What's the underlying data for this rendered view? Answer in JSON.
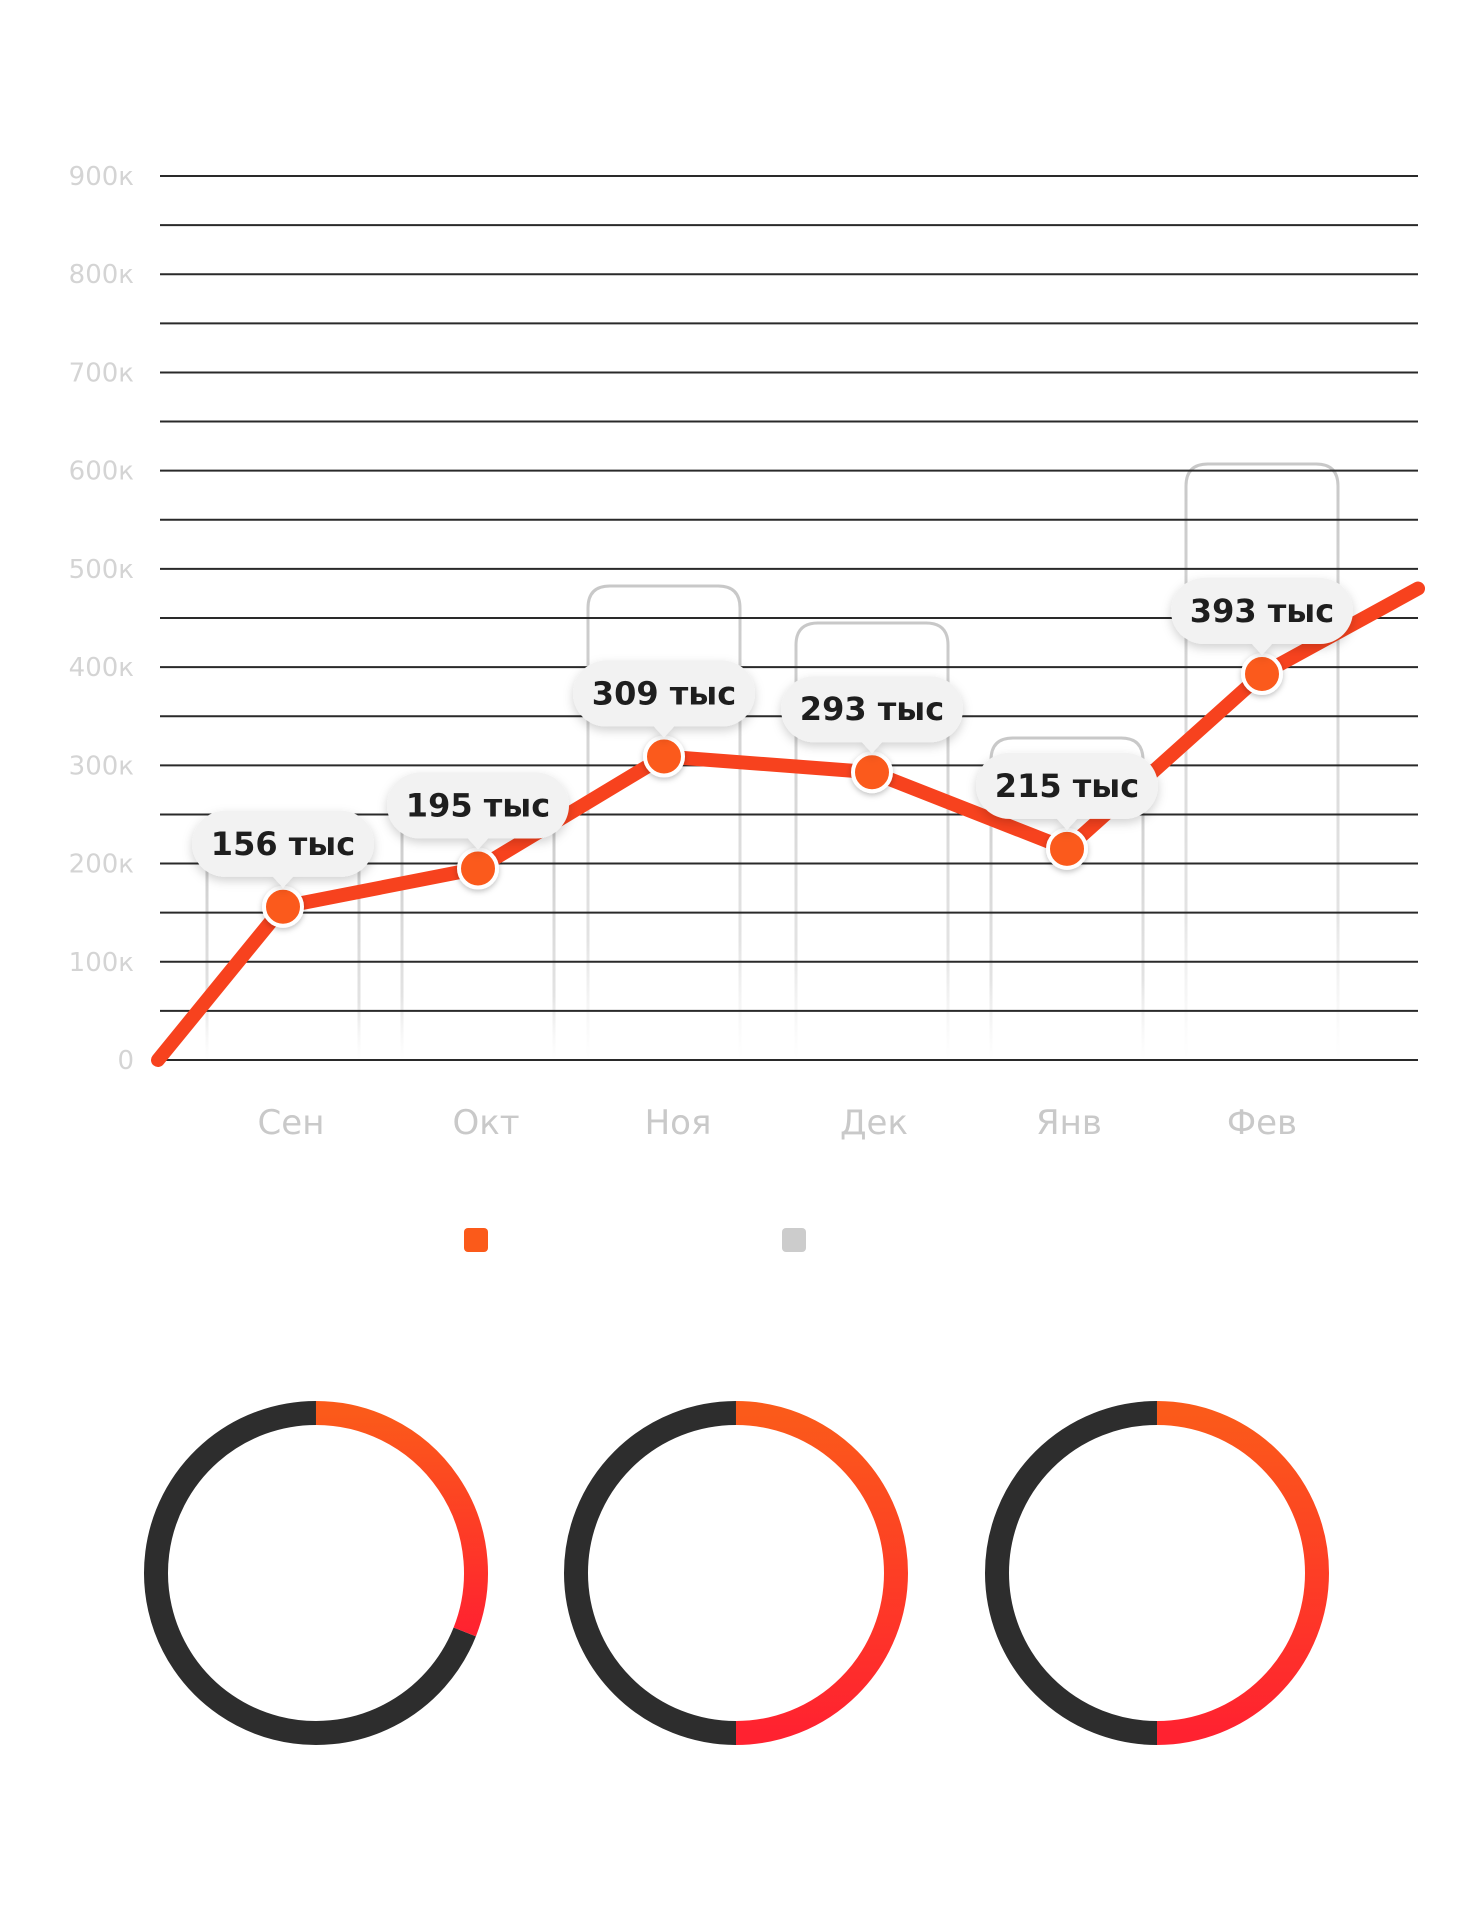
{
  "chart_data": [
    {
      "type": "line",
      "ylim": [
        0,
        900
      ],
      "yticks": [
        "0",
        "100к",
        "200к",
        "300к",
        "400к",
        "500к",
        "600к",
        "700к",
        "800к",
        "900к"
      ],
      "categories": [
        "Сен",
        "Окт",
        "Ноя",
        "Дек",
        "Янв",
        "Фев"
      ],
      "series": [
        {
          "color": "#f7421e",
          "values": [
            156,
            195,
            309,
            293,
            215,
            393
          ],
          "labels": [
            "156 тыс",
            "195 тыс",
            "309 тыс",
            "293 тыс",
            "215 тыс",
            "393 тыс"
          ]
        }
      ],
      "line_start_value": 0,
      "line_end_value": 480,
      "legend": [
        {
          "color": "#fb5a1a"
        },
        {
          "color": "#cccccc"
        }
      ],
      "grid": true
    },
    {
      "type": "pie",
      "donuts": [
        {
          "highlight_fraction": 0.31,
          "track_fraction": 0.69
        },
        {
          "highlight_fraction": 0.5,
          "track_fraction": 0.5
        },
        {
          "highlight_fraction": 0.5,
          "track_fraction": 0.5
        }
      ],
      "colors": {
        "highlight_start": "#fb5a1a",
        "highlight_end": "#ff2230",
        "track": "#2d2d2d"
      }
    }
  ]
}
